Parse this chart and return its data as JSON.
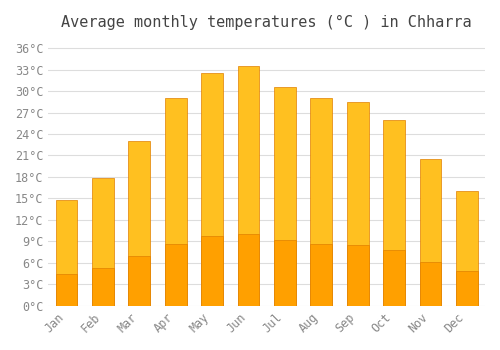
{
  "title": "Average monthly temperatures (°C ) in Chharra",
  "months": [
    "Jan",
    "Feb",
    "Mar",
    "Apr",
    "May",
    "Jun",
    "Jul",
    "Aug",
    "Sep",
    "Oct",
    "Nov",
    "Dec"
  ],
  "values": [
    14.8,
    17.8,
    23.0,
    29.0,
    32.5,
    33.5,
    30.5,
    29.0,
    28.5,
    26.0,
    20.5,
    16.0
  ],
  "bar_color_top": "#FFC020",
  "bar_color_bottom": "#FFA000",
  "bar_edge_color": "#E08000",
  "background_color": "#FFFFFF",
  "grid_color": "#DDDDDD",
  "tick_label_color": "#888888",
  "title_color": "#444444",
  "yticks": [
    0,
    3,
    6,
    9,
    12,
    15,
    18,
    21,
    24,
    27,
    30,
    33,
    36
  ],
  "ylim": [
    0,
    37
  ],
  "title_fontsize": 11,
  "tick_fontsize": 8.5
}
